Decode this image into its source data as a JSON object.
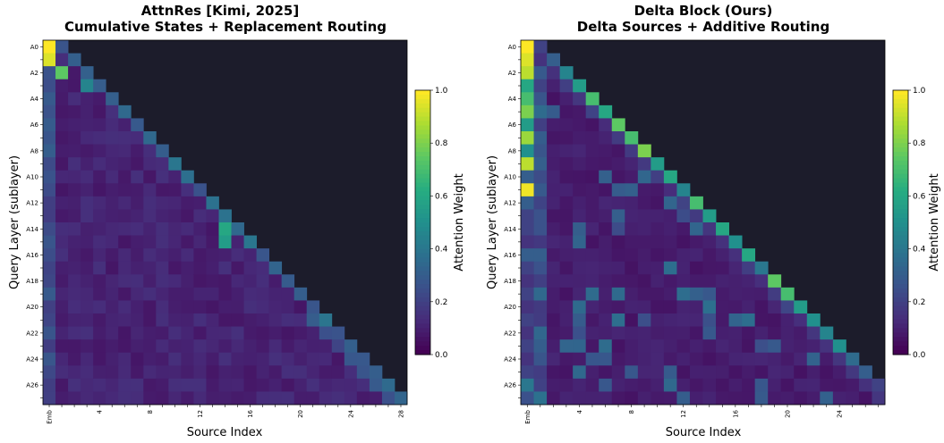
{
  "chart_data": [
    {
      "type": "heatmap",
      "title": "AttnRes [Kimi, 2025]",
      "subtitle": "Cumulative States + Replacement Routing",
      "xlabel": "Source Index",
      "ylabel": "Query Layer (sublayer)",
      "colorbar_label": "Attention Weight",
      "colormap": "viridis",
      "clim": [
        0.0,
        1.0
      ],
      "colorbar_ticks": [
        "0.0",
        "0.2",
        "0.4",
        "0.6",
        "0.8",
        "1.0"
      ],
      "x_tick_labels": [
        "Emb",
        "4",
        "8",
        "12",
        "16",
        "20",
        "24",
        "28"
      ],
      "y_tick_labels": [
        "A0",
        "A2",
        "A4",
        "A6",
        "A8",
        "A10",
        "A12",
        "A14",
        "A16",
        "A18",
        "A20",
        "A22",
        "A24",
        "A26"
      ],
      "num_rows": 28,
      "num_sources": 29,
      "masked_color": "#1c1c2b",
      "mask": "upper-triangular (source index > query row + 1 is masked)",
      "notable_cells": [
        {
          "row": "A0",
          "source": "Emb",
          "value": 1.0
        },
        {
          "row": "A1",
          "source": "Emb",
          "value": 0.95
        },
        {
          "row": "A2",
          "source": 1,
          "value": 0.75
        },
        {
          "row": "A3",
          "source": 3,
          "value": 0.45
        },
        {
          "row": "A14",
          "source": 14,
          "value": 0.6
        },
        {
          "row": "A15",
          "source": 14,
          "value": 0.55
        }
      ],
      "typical_value": 0.1
    },
    {
      "type": "heatmap",
      "title": "Delta Block (Ours)",
      "subtitle": "Delta Sources + Additive Routing",
      "xlabel": "Source Index",
      "ylabel": "Query Layer (sublayer)",
      "colorbar_label": "Attention Weight",
      "colormap": "viridis",
      "clim": [
        0.0,
        1.0
      ],
      "colorbar_ticks": [
        "0.0",
        "0.2",
        "0.4",
        "0.6",
        "0.8",
        "1.0"
      ],
      "x_tick_labels": [
        "Emb",
        "4",
        "8",
        "12",
        "16",
        "20",
        "24"
      ],
      "y_tick_labels": [
        "A0",
        "A2",
        "A4",
        "A6",
        "A8",
        "A10",
        "A12",
        "A14",
        "A16",
        "A18",
        "A20",
        "A22",
        "A24",
        "A26"
      ],
      "num_rows": 28,
      "num_sources": 28,
      "masked_color": "#1c1c2b",
      "mask": "upper-triangular (source index > query row + 1 is masked)",
      "emb_column_values": [
        1.0,
        0.95,
        0.9,
        0.6,
        0.7,
        0.8,
        0.55,
        0.85,
        0.5,
        0.9,
        0.3,
        0.98,
        0.3,
        0.2,
        0.2,
        0.15,
        0.3,
        0.2,
        0.15,
        0.2,
        0.15,
        0.2,
        0.15,
        0.2,
        0.15,
        0.2,
        0.4,
        0.25
      ],
      "diagonal_values": [
        0.2,
        0.3,
        0.45,
        0.55,
        0.7,
        0.6,
        0.75,
        0.7,
        0.8,
        0.55,
        0.6,
        0.45,
        0.7,
        0.55,
        0.6,
        0.5,
        0.6,
        0.4,
        0.75,
        0.7,
        0.55,
        0.5,
        0.45,
        0.5,
        0.35,
        0.3,
        0.2,
        0.15
      ],
      "typical_value": 0.08
    }
  ]
}
